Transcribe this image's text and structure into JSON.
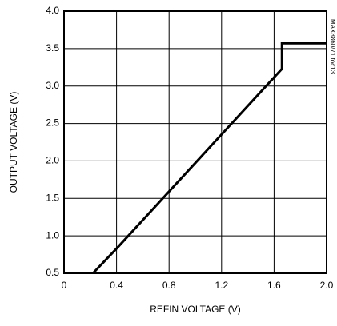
{
  "chart_data": {
    "type": "line",
    "xlabel": "REFIN VOLTAGE (V)",
    "ylabel": "OUTPUT VOLTAGE (V)",
    "annotation": "MAX8860/71 toc13",
    "x": [
      0.22,
      0.4,
      1.66,
      1.66,
      2.0
    ],
    "series": [
      {
        "color": "#000000",
        "values": [
          0.5,
          0.83,
          3.23,
          3.57,
          3.57
        ]
      }
    ],
    "xlim": [
      0,
      2
    ],
    "ylim": [
      0.5,
      4
    ],
    "xticks": [
      0,
      0.4,
      0.8,
      1.2,
      1.6,
      {
        "value": 2,
        "label": "2.0"
      }
    ],
    "yticks": [
      0.5,
      {
        "value": 1,
        "label": "1.0"
      },
      1.5,
      {
        "value": 2,
        "label": "2.0"
      },
      2.5,
      {
        "value": 3,
        "label": "3.0"
      },
      3.5,
      {
        "value": 4,
        "label": "4.0"
      }
    ],
    "grid": true
  }
}
